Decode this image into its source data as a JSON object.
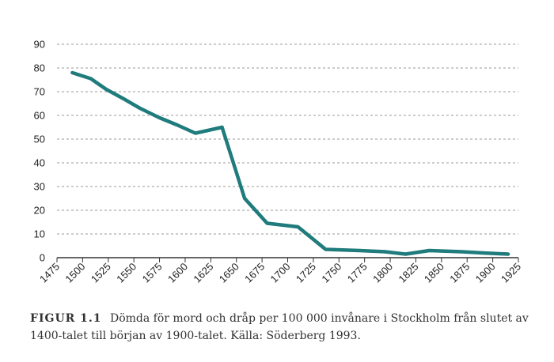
{
  "chart_data": {
    "type": "line",
    "x": [
      1490,
      1508,
      1523,
      1540,
      1556,
      1575,
      1592,
      1610,
      1636,
      1658,
      1680,
      1710,
      1737,
      1770,
      1795,
      1815,
      1838,
      1870,
      1890,
      1915
    ],
    "series": [
      {
        "values": [
          78,
          75.5,
          71,
          67,
          63,
          59,
          56,
          52.5,
          55,
          25,
          14.5,
          13,
          3.5,
          3,
          2.5,
          1.5,
          3,
          2.5,
          2,
          1.5
        ]
      }
    ],
    "xticks": [
      1475,
      1500,
      1525,
      1550,
      1575,
      1600,
      1625,
      1650,
      1675,
      1700,
      1725,
      1750,
      1775,
      1800,
      1825,
      1850,
      1875,
      1900,
      1925
    ],
    "yticks": [
      0,
      10,
      20,
      30,
      40,
      50,
      60,
      70,
      80,
      90
    ],
    "xlim": [
      1475,
      1925
    ],
    "ylim": [
      0,
      90
    ],
    "grid": "horizontal-dashed",
    "line_color": "#1f7b7c"
  },
  "caption": {
    "label": "FIGUR 1.1",
    "text": "Dömda för mord och dråp per 100 000 invånare i Stockholm från slutet av 1400-talet till början av 1900-talet. Källa: Söderberg 1993."
  }
}
